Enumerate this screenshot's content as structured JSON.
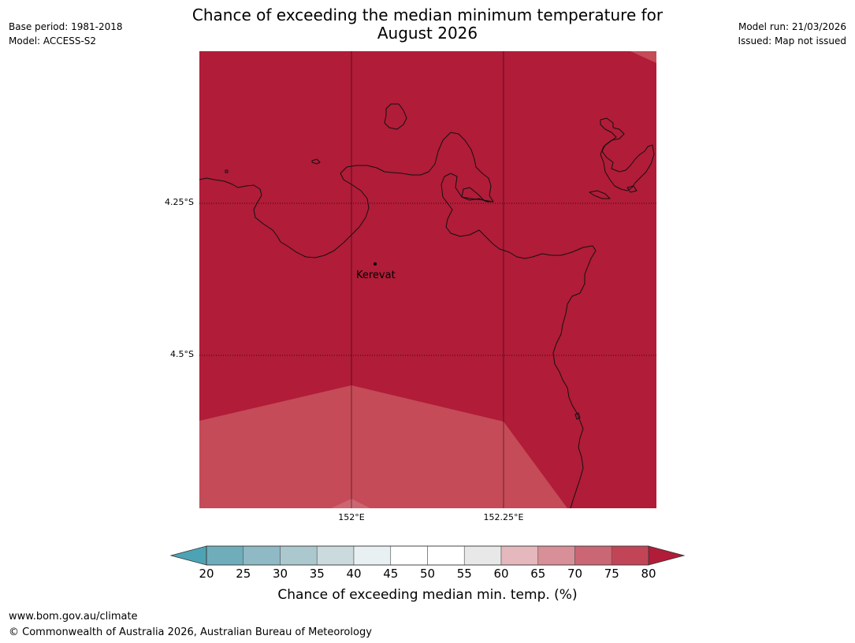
{
  "title": {
    "line1": "Chance of exceeding the median minimum temperature for",
    "line2": "August 2026"
  },
  "meta_left": {
    "base_period": "Base period: 1981-2018",
    "model": "Model: ACCESS-S2"
  },
  "meta_right": {
    "model_run": "Model run: 21/03/2026",
    "issued": "Issued: Map not issued"
  },
  "map": {
    "lat_labels": [
      "4.25°S",
      "4.5°S"
    ],
    "lon_labels": [
      "152°E",
      "152.25°E"
    ],
    "place": {
      "name": "Kerevat"
    },
    "region_colors": {
      "80_plus": "#b11c38",
      "75_80": "#c44b57",
      "70_75": "#cc6772"
    }
  },
  "colorbar": {
    "ticks": [
      "20",
      "25",
      "30",
      "35",
      "40",
      "45",
      "50",
      "55",
      "60",
      "65",
      "70",
      "75",
      "80"
    ],
    "bins": [
      "#6fadbb",
      "#8fb9c5",
      "#aac8cd",
      "#cbdadd",
      "#e9f0f2",
      "#ffffff",
      "#ffffff",
      "#e8e8e8",
      "#e4b8bd",
      "#d88f98",
      "#cb6674",
      "#c14556"
    ],
    "under_color": "#4da3b3",
    "over_color": "#b11c38",
    "label": "Chance of exceeding median min. temp. (%)"
  },
  "footer": {
    "url": "www.bom.gov.au/climate",
    "copyright": "© Commonwealth of Australia 2026, Australian Bureau of Meteorology"
  }
}
